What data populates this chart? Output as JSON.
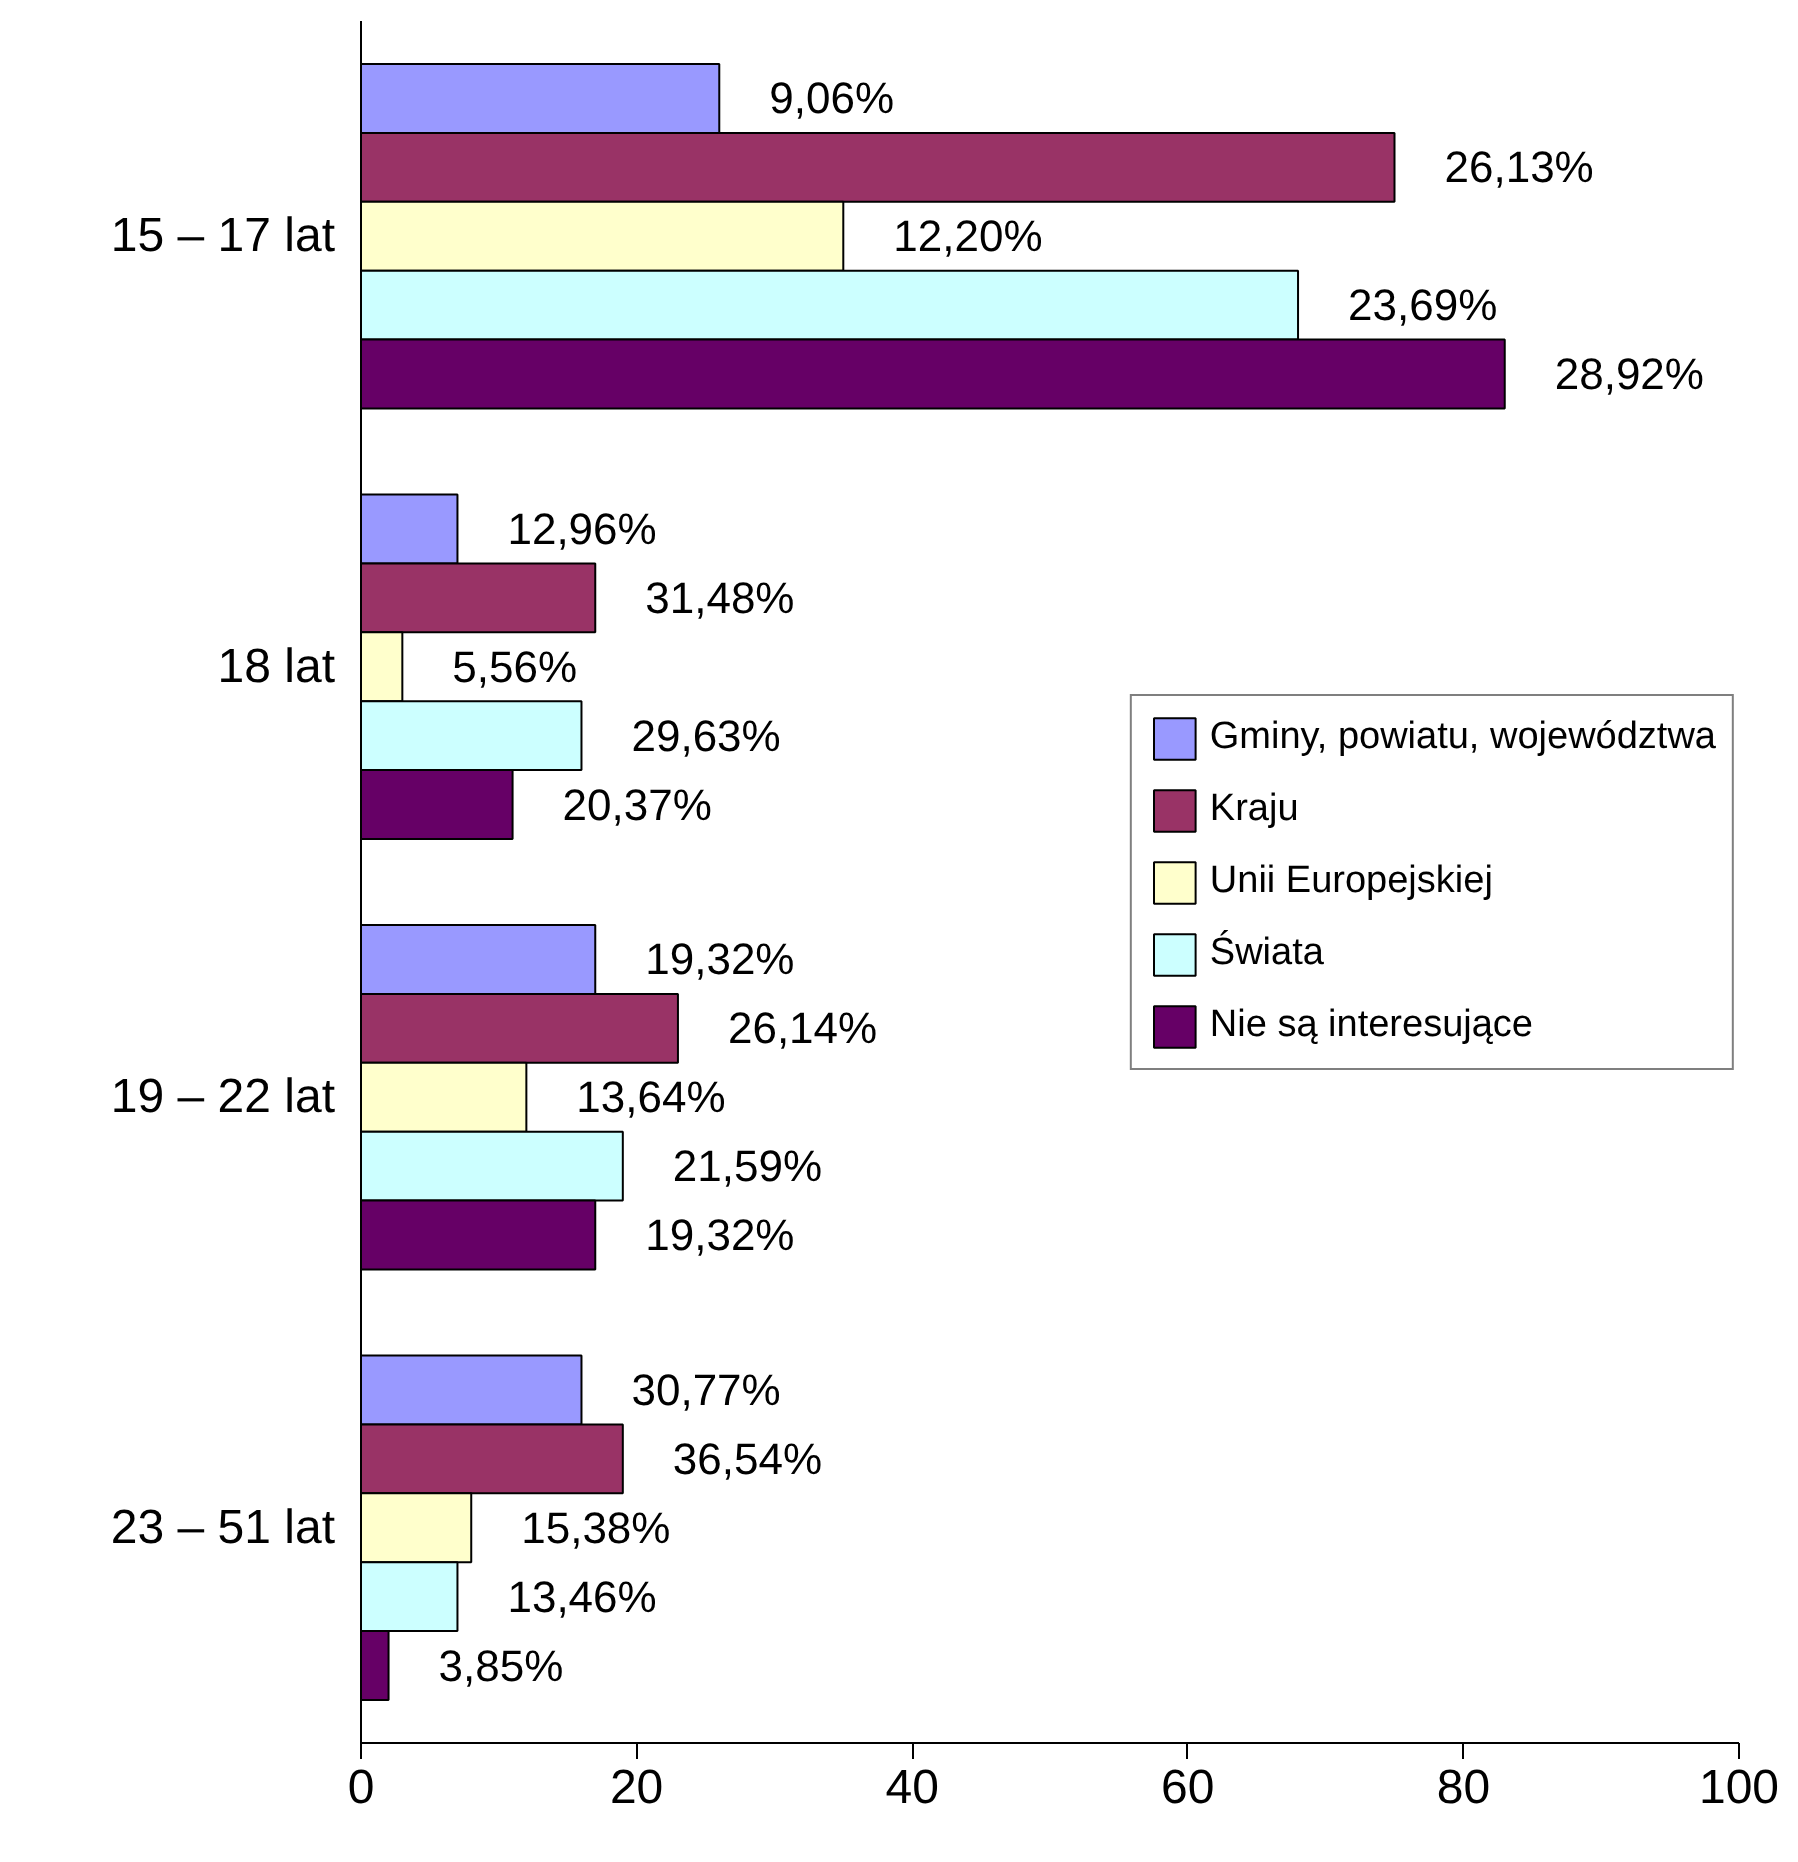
{
  "chart_data": {
    "type": "bar",
    "orientation": "horizontal",
    "categories": [
      "15 – 17 lat",
      "18 lat",
      "19 – 22 lat",
      "23 – 51 lat"
    ],
    "series": [
      {
        "name": "Gminy, powiatu, województwa",
        "color": "#9999ff",
        "values": [
          26,
          7,
          17,
          16
        ]
      },
      {
        "name": "Kraju",
        "color": "#993366",
        "values": [
          75,
          17,
          23,
          19
        ]
      },
      {
        "name": "Unii Europejskiej",
        "color": "#ffffcc",
        "values": [
          35,
          3,
          12,
          8
        ]
      },
      {
        "name": "Świata",
        "color": "#ccffff",
        "values": [
          68,
          16,
          19,
          7
        ]
      },
      {
        "name": "Nie są interesujące",
        "color": "#660066",
        "values": [
          83,
          11,
          17,
          2
        ]
      }
    ],
    "annotations": [
      "9,06%",
      "26,13%",
      "12,20%",
      "23,69%",
      "28,92%",
      "12,96%",
      "31,48%",
      "5,56%",
      "29,63%",
      "20,37%",
      "19,32%",
      "26,14%",
      "13,64%",
      "21,59%",
      "19,32%",
      "30,77%",
      "36,54%",
      "15,38%",
      "13,46%",
      "3,85%"
    ],
    "xlim": [
      0,
      100
    ],
    "xticks": [
      0,
      20,
      40,
      60,
      80,
      100
    ],
    "grid": false,
    "legend": "right"
  }
}
